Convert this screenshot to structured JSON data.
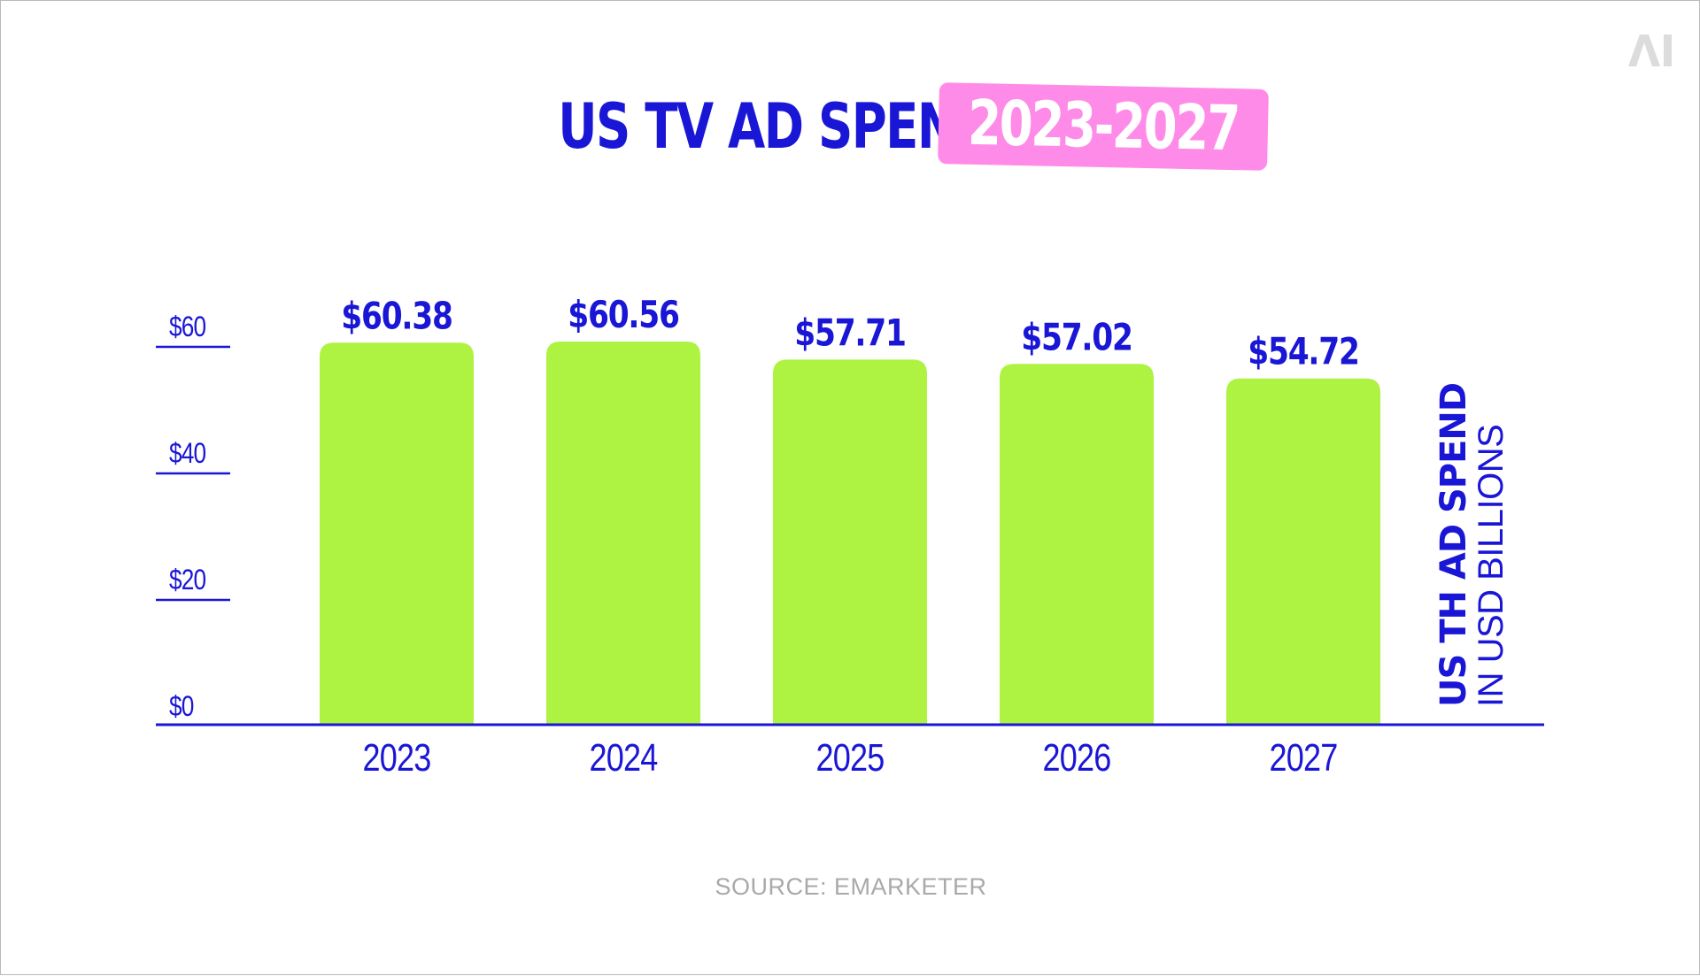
{
  "title": {
    "main": "US TV AD SPEND",
    "years": "2023-2027"
  },
  "logo": {
    "text": "AI",
    "icon": "ai-logo-icon"
  },
  "side_label": {
    "line1": "US TH AD SPEND",
    "line2": "IN USD BILLIONS"
  },
  "source": "SOURCE: EMARKETER",
  "colors": {
    "bar": "#aef242",
    "text_blue": "#1a16d6",
    "highlight_pink": "#ff8be8",
    "source_gray": "#a9a9a9"
  },
  "chart_data": {
    "type": "bar",
    "categories": [
      "2023",
      "2024",
      "2025",
      "2026",
      "2027"
    ],
    "values": [
      60.38,
      60.56,
      57.71,
      57.02,
      54.72
    ],
    "value_labels": [
      "$60.38",
      "$60.56",
      "$57.71",
      "$57.02",
      "$54.72"
    ],
    "yticks": [
      0,
      20,
      40,
      60
    ],
    "ytick_labels": [
      "$0",
      "$20",
      "$40",
      "$60"
    ],
    "ylim": [
      0,
      60
    ],
    "grid": false,
    "legend": "none"
  }
}
